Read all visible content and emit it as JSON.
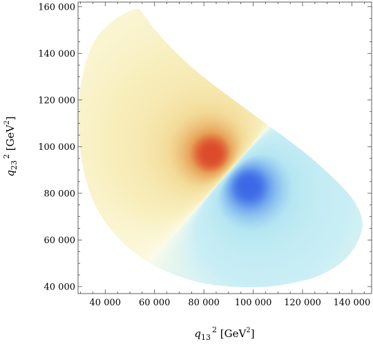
{
  "chart_data": {
    "type": "heatmap",
    "title": "",
    "xlabel": {
      "var": "q",
      "sub": "13",
      "sup": "2",
      "unit_prefix": " [GeV",
      "unit_sup": "2",
      "unit_suffix": "]"
    },
    "ylabel": {
      "var": "q",
      "sub": "23",
      "sup": "2",
      "unit_prefix": " [GeV",
      "unit_sup": "2",
      "unit_suffix": "]"
    },
    "xlim": [
      29000,
      148000
    ],
    "ylim": [
      37000,
      162000
    ],
    "x_ticks": [
      40000,
      60000,
      80000,
      100000,
      120000,
      140000
    ],
    "x_tick_labels": [
      "40 000",
      "60 000",
      "80 000",
      "100 000",
      "120 000",
      "140 000"
    ],
    "y_ticks": [
      40000,
      60000,
      80000,
      100000,
      120000,
      140000,
      160000
    ],
    "y_tick_labels": [
      "40 000",
      "60 000",
      "80 000",
      "100 000",
      "120 000",
      "140 000",
      "160 000"
    ],
    "x_minor_step": 5000,
    "y_minor_step": 5000,
    "grid": false,
    "legend": "none",
    "region_boundary": [
      [
        53000,
        159000
      ],
      [
        46000,
        156000
      ],
      [
        40000,
        151000
      ],
      [
        36000,
        146000
      ],
      [
        33000,
        139000
      ],
      [
        31000,
        131000
      ],
      [
        29600,
        123000
      ],
      [
        29200,
        115000
      ],
      [
        29300,
        107000
      ],
      [
        29900,
        99000
      ],
      [
        31000,
        91000
      ],
      [
        32700,
        84000
      ],
      [
        35000,
        77000
      ],
      [
        38000,
        71000
      ],
      [
        42000,
        65000
      ],
      [
        47000,
        59000
      ],
      [
        52500,
        54000
      ],
      [
        59000,
        49500
      ],
      [
        66000,
        46000
      ],
      [
        74000,
        43000
      ],
      [
        82000,
        41000
      ],
      [
        91000,
        40000
      ],
      [
        100000,
        39700
      ],
      [
        109000,
        40300
      ],
      [
        117000,
        41800
      ],
      [
        125000,
        44000
      ],
      [
        132000,
        47500
      ],
      [
        137500,
        52000
      ],
      [
        141500,
        57500
      ],
      [
        143800,
        63000
      ],
      [
        144300,
        67000
      ],
      [
        143200,
        72000
      ],
      [
        140000,
        78000
      ],
      [
        135000,
        84000
      ],
      [
        129000,
        90000
      ],
      [
        122000,
        96500
      ],
      [
        114000,
        103000
      ],
      [
        105000,
        110000
      ],
      [
        96000,
        117000
      ],
      [
        87000,
        124000
      ],
      [
        78500,
        131000
      ],
      [
        71000,
        138000
      ],
      [
        64500,
        145000
      ],
      [
        59500,
        151000
      ],
      [
        56000,
        156000
      ]
    ],
    "poles": [
      {
        "name": "maximum",
        "x": 83000,
        "y": 97000,
        "sign": 1
      },
      {
        "name": "minimum",
        "x": 98000,
        "y": 83000,
        "sign": -1
      }
    ],
    "colors": {
      "positive_peak": "#dc4a2a",
      "positive_mid": "#e8a35a",
      "positive_low": "#f3dc9a",
      "positive_base": "#f8eebb",
      "neutral": "#fcfceb",
      "negative_base": "#b5e6f1",
      "negative_low": "#c9eef5",
      "negative_mid": "#6fa6ee",
      "negative_peak": "#3c68e6"
    }
  }
}
